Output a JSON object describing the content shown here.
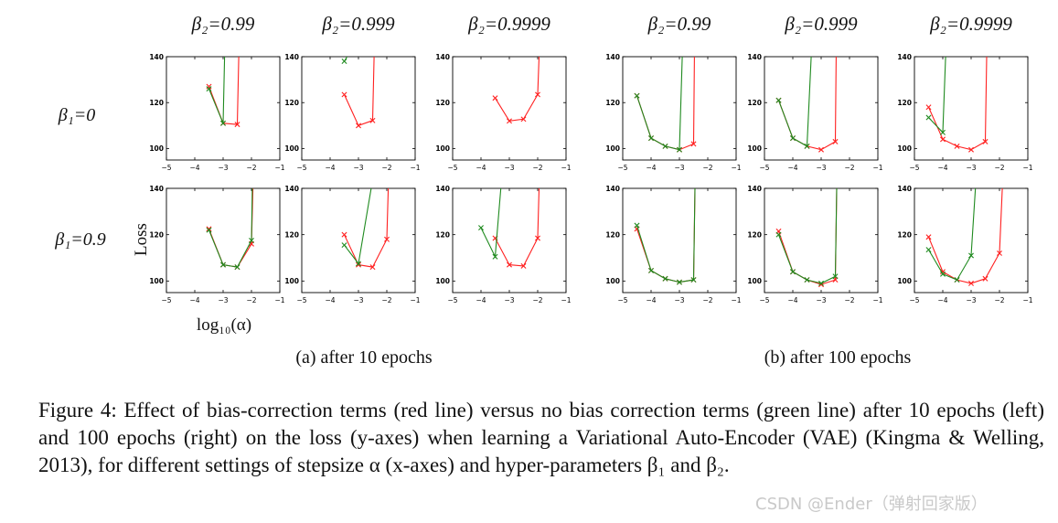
{
  "chart_data": {
    "type": "line",
    "panel_titles": [
      "β₂=0.99",
      "β₂=0.999",
      "β₂=0.9999",
      "β₂=0.99",
      "β₂=0.999",
      "β₂=0.9999"
    ],
    "row_labels": [
      "β₁=0",
      "β₁=0.9"
    ],
    "ylabel": "Loss",
    "xlabel": "log₁₀(α)",
    "xlim": [
      -5,
      -1
    ],
    "ylim": [
      95,
      140
    ],
    "xticks": [
      "−5",
      "−4",
      "−3",
      "−2",
      "−1"
    ],
    "yticks": [
      "100",
      "120",
      "140"
    ],
    "series_names": [
      "bias-correction terms",
      "no bias correction terms"
    ],
    "groups": [
      {
        "subtitle": "(a) after 10 epochs",
        "panels": [
          {
            "red": [
              [
                -3.5,
                127
              ],
              [
                -3,
                111
              ],
              [
                -2.5,
                110.5
              ],
              [
                -2.45,
                140
              ]
            ],
            "green": [
              [
                -3.5,
                126
              ],
              [
                -3,
                111
              ],
              [
                -2.95,
                140
              ]
            ]
          },
          {
            "red": [
              [
                -3.5,
                123.5
              ],
              [
                -3,
                110
              ],
              [
                -2.5,
                112.2
              ],
              [
                -2.45,
                140
              ]
            ],
            "green": [
              [
                -3.5,
                138
              ],
              [
                -3.4,
                140
              ]
            ]
          },
          {
            "red": [
              [
                -3.5,
                122
              ],
              [
                -3,
                112
              ],
              [
                -2.5,
                112.8
              ],
              [
                -2,
                123.5
              ],
              [
                -1.95,
                140
              ]
            ],
            "green": []
          },
          {
            "red": [
              [
                -3.5,
                122.5
              ],
              [
                -3,
                107
              ],
              [
                -2.5,
                106
              ],
              [
                -2,
                116
              ],
              [
                -1.95,
                140
              ]
            ],
            "green": [
              [
                -3.5,
                122
              ],
              [
                -3,
                107
              ],
              [
                -2.5,
                106
              ],
              [
                -2,
                117.5
              ],
              [
                -1.97,
                140
              ]
            ]
          },
          {
            "red": [
              [
                -3.5,
                120
              ],
              [
                -3,
                107
              ],
              [
                -2.5,
                106
              ],
              [
                -2,
                118
              ],
              [
                -1.95,
                140
              ]
            ],
            "green": [
              [
                -3.5,
                115.5
              ],
              [
                -3,
                107.5
              ],
              [
                -2.55,
                140
              ]
            ]
          },
          {
            "red": [
              [
                -3.5,
                118.5
              ],
              [
                -3,
                107
              ],
              [
                -2.5,
                106.5
              ],
              [
                -2,
                118.5
              ],
              [
                -1.95,
                140
              ]
            ],
            "green": [
              [
                -4,
                123
              ],
              [
                -3.5,
                110.5
              ],
              [
                -3.3,
                140
              ]
            ]
          }
        ]
      },
      {
        "subtitle": "(b) after 100 epochs",
        "panels": [
          {
            "red": [
              [
                -4.5,
                123
              ],
              [
                -4,
                104.5
              ],
              [
                -3.5,
                101
              ],
              [
                -3,
                99.5
              ],
              [
                -2.5,
                102
              ],
              [
                -2.47,
                140
              ]
            ],
            "green": [
              [
                -4.5,
                123
              ],
              [
                -4,
                104.5
              ],
              [
                -3.5,
                101
              ],
              [
                -3,
                99.5
              ],
              [
                -2.9,
                140
              ]
            ]
          },
          {
            "red": [
              [
                -4.5,
                121
              ],
              [
                -4,
                104.5
              ],
              [
                -3.5,
                101
              ],
              [
                -3,
                99.5
              ],
              [
                -2.5,
                103
              ],
              [
                -2.47,
                140
              ]
            ],
            "green": [
              [
                -4.5,
                121
              ],
              [
                -4,
                104.5
              ],
              [
                -3.5,
                101
              ],
              [
                -3.35,
                140
              ]
            ]
          },
          {
            "red": [
              [
                -4.5,
                118
              ],
              [
                -4,
                104
              ],
              [
                -3.5,
                101
              ],
              [
                -3,
                99.5
              ],
              [
                -2.5,
                103
              ],
              [
                -2.45,
                140
              ]
            ],
            "green": [
              [
                -4.5,
                113.5
              ],
              [
                -4,
                107
              ],
              [
                -3.9,
                140
              ]
            ]
          },
          {
            "red": [
              [
                -4.5,
                122.5
              ],
              [
                -4,
                104.5
              ],
              [
                -3.5,
                101
              ],
              [
                -3,
                99.5
              ],
              [
                -2.5,
                100.5
              ],
              [
                -2.45,
                140
              ]
            ],
            "green": [
              [
                -4.5,
                124
              ],
              [
                -4,
                104.5
              ],
              [
                -3.5,
                101
              ],
              [
                -3,
                99.5
              ],
              [
                -2.5,
                100.5
              ],
              [
                -2.45,
                140
              ]
            ]
          },
          {
            "red": [
              [
                -4.5,
                121.5
              ],
              [
                -4,
                104
              ],
              [
                -3.5,
                100.5
              ],
              [
                -3,
                98.5
              ],
              [
                -2.5,
                100.5
              ],
              [
                -2.45,
                140
              ]
            ],
            "green": [
              [
                -4.5,
                120
              ],
              [
                -4,
                104
              ],
              [
                -3.5,
                100.5
              ],
              [
                -3,
                99
              ],
              [
                -2.5,
                102
              ],
              [
                -2.45,
                140
              ]
            ]
          },
          {
            "red": [
              [
                -4.5,
                119
              ],
              [
                -4,
                104
              ],
              [
                -3.5,
                100.5
              ],
              [
                -3,
                99
              ],
              [
                -2.5,
                101
              ],
              [
                -2,
                112
              ],
              [
                -1.9,
                140
              ]
            ],
            "green": [
              [
                -4.5,
                113.5
              ],
              [
                -4,
                103
              ],
              [
                -3.5,
                100.5
              ],
              [
                -3,
                111
              ],
              [
                -2.85,
                140
              ]
            ]
          }
        ]
      }
    ]
  },
  "caption": {
    "text": "Figure 4:  Effect of bias-correction terms (red line) versus no bias correction terms (green line) after 10 epochs (left) and 100 epochs (right) on the loss (y-axes) when learning a Variational Auto-Encoder (VAE) (Kingma & Welling, 2013), for different settings of stepsize α (x-axes) and hyper-parameters β₁ and β₂."
  },
  "watermark": "CSDN @Ender（弹射回家版）",
  "colors": {
    "red": "#ff2020",
    "green": "#1f8a1f",
    "axis": "#000000",
    "background": "#ffffff"
  }
}
